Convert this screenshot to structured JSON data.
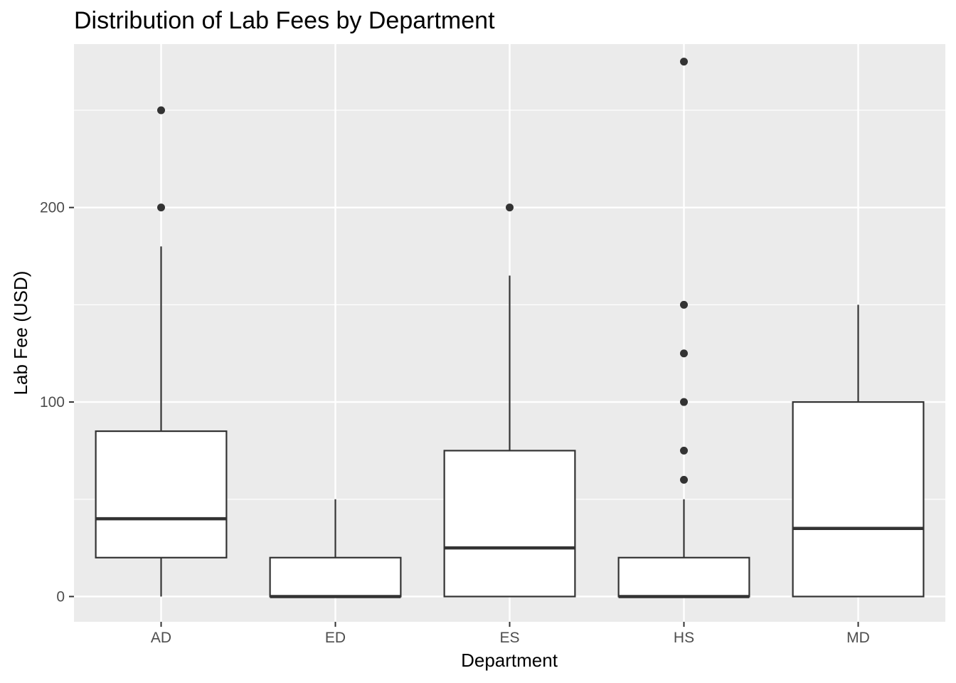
{
  "chart_data": {
    "type": "boxplot",
    "title": "Distribution of Lab Fees by Department",
    "xlabel": "Department",
    "ylabel": "Lab Fee (USD)",
    "ylim": [
      -13,
      284
    ],
    "yticks": [
      0,
      100,
      200
    ],
    "y_minor_ticks": [
      50,
      150,
      250
    ],
    "grid": true,
    "categories": [
      "AD",
      "ED",
      "ES",
      "HS",
      "MD"
    ],
    "boxes": [
      {
        "category": "AD",
        "whisker_low": 0,
        "q1": 20,
        "median": 40,
        "q3": 85,
        "whisker_high": 180,
        "outliers": [
          200,
          250
        ]
      },
      {
        "category": "ED",
        "whisker_low": 0,
        "q1": 0,
        "median": 0,
        "q3": 20,
        "whisker_high": 50,
        "outliers": []
      },
      {
        "category": "ES",
        "whisker_low": 0,
        "q1": 0,
        "median": 25,
        "q3": 75,
        "whisker_high": 165,
        "outliers": [
          200
        ]
      },
      {
        "category": "HS",
        "whisker_low": 0,
        "q1": 0,
        "median": 0,
        "q3": 20,
        "whisker_high": 50,
        "outliers": [
          60,
          75,
          100,
          125,
          150,
          275
        ]
      },
      {
        "category": "MD",
        "whisker_low": 0,
        "q1": 0,
        "median": 35,
        "q3": 100,
        "whisker_high": 150,
        "outliers": []
      }
    ],
    "colors": {
      "panel": "#ebebeb",
      "grid": "#ffffff",
      "box_fill": "#ffffff",
      "box_line": "#333333",
      "tick": "#333333"
    }
  }
}
